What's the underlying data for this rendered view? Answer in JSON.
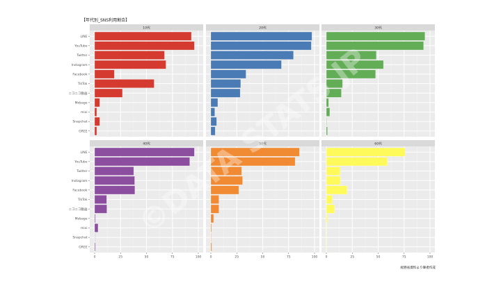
{
  "chart_data": {
    "type": "bar",
    "orientation": "horizontal",
    "title": "【年代別_SNS利用割合】",
    "caption": "総務省資料より筆者作成",
    "watermark": "©DATA STATS JP",
    "xlabel": "",
    "ylabel": "",
    "xlim": [
      0,
      100
    ],
    "x_ticks": [
      "0",
      "25",
      "50",
      "75",
      "100"
    ],
    "x_tick_values": [
      0,
      25,
      50,
      75,
      100
    ],
    "grid": true,
    "facet_layout": "2 rows x 3 columns",
    "categories": [
      "LINE",
      "YouTube",
      "Twitter",
      "Instagram",
      "Facebook",
      "TikTok",
      "ニコニコ動画",
      "Mobage",
      "mixi",
      "Snapchat",
      "GREE"
    ],
    "series": [
      {
        "name": "10代",
        "color": "#D43A2F",
        "values": [
          93.3,
          96.2,
          67.4,
          68.8,
          19.0,
          57.4,
          26.8,
          4.9,
          2.0,
          4.9,
          2.0
        ]
      },
      {
        "name": "20代",
        "color": "#4A7BB5",
        "values": [
          97.5,
          96.9,
          79.7,
          68.1,
          33.9,
          28.8,
          28.3,
          6.7,
          3.8,
          5.6,
          4.2
        ]
      },
      {
        "name": "30代",
        "color": "#63AD57",
        "values": [
          95.1,
          93.8,
          48.2,
          55.1,
          47.5,
          15.6,
          14.5,
          2.2,
          3.3,
          0.4,
          1.1
        ]
      },
      {
        "name": "40代",
        "color": "#8C4E9E",
        "values": [
          96.2,
          91.7,
          37.7,
          38.6,
          38.8,
          11.6,
          11.8,
          0.7,
          3.3,
          0.2,
          0.7
        ]
      },
      {
        "name": "50代",
        "color": "#F08A33",
        "values": [
          85.5,
          81.3,
          29.7,
          30.6,
          27.0,
          7.8,
          7.8,
          2.7,
          0.7,
          0.4,
          0.9
        ]
      },
      {
        "name": "60代",
        "color": "#FFFA5C",
        "values": [
          75.9,
          58.9,
          13.4,
          13.6,
          20.1,
          5.8,
          8.0,
          1.3,
          0.4,
          0.2,
          0.4
        ]
      }
    ]
  }
}
